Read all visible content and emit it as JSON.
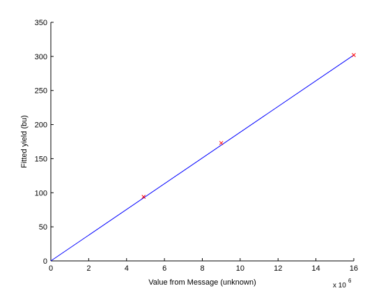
{
  "chart_data": {
    "type": "scatter",
    "xlabel": "Value from Message (unknown)",
    "ylabel": "Fitted yield (bu)",
    "xlim": [
      0,
      16
    ],
    "ylim": [
      0,
      350
    ],
    "x_multiplier": {
      "base": "x 10",
      "exponent": "6"
    },
    "x_ticks": [
      0,
      2,
      4,
      6,
      8,
      10,
      12,
      14,
      16
    ],
    "x_tick_labels": [
      "0",
      "2",
      "4",
      "6",
      "8",
      "10",
      "12",
      "14",
      "16"
    ],
    "y_ticks": [
      0,
      50,
      100,
      150,
      200,
      250,
      300,
      350
    ],
    "y_tick_labels": [
      "0",
      "50",
      "100",
      "150",
      "200",
      "250",
      "300",
      "350"
    ],
    "grid": false,
    "series": [
      {
        "type": "line",
        "color": "#0000ff",
        "x": [
          0,
          16
        ],
        "y": [
          0,
          302
        ]
      },
      {
        "type": "scatter",
        "marker": "x",
        "color": "#ff0000",
        "x": [
          4.9,
          9.0,
          16.0
        ],
        "y": [
          94,
          173,
          302
        ]
      }
    ]
  }
}
